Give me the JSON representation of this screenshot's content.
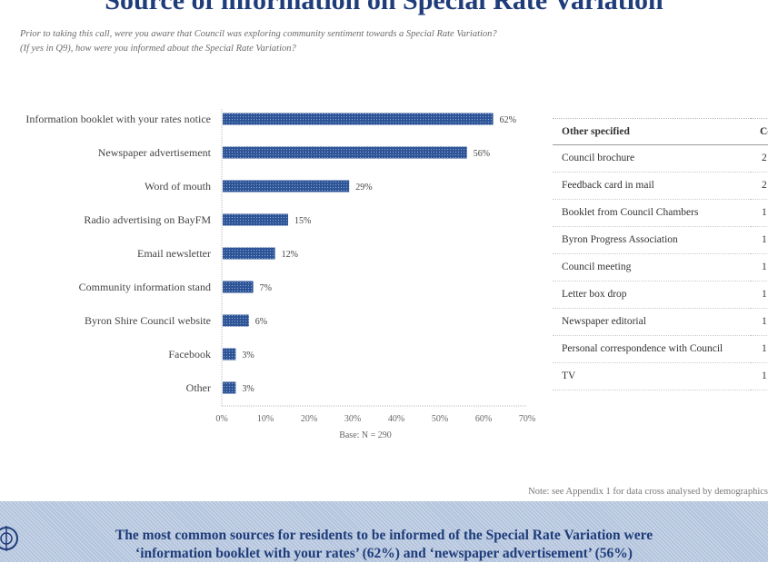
{
  "header": {
    "title": "Source of information on Special Rate Variation",
    "question_line1": "Prior to taking this call, were you aware that Council was exploring community sentiment towards a Special Rate Variation?",
    "question_line2": "(If yes in Q9), how were you informed about the Special Rate Variation?"
  },
  "chart_data": {
    "type": "bar",
    "orientation": "horizontal",
    "categories": [
      "Information booklet with your rates notice",
      "Newspaper advertisement",
      "Word of mouth",
      "Radio advertising on BayFM",
      "Email newsletter",
      "Community information stand",
      "Byron Shire Council website",
      "Facebook",
      "Other"
    ],
    "values": [
      62,
      56,
      29,
      15,
      12,
      7,
      6,
      3,
      3
    ],
    "value_labels": [
      "62%",
      "56%",
      "29%",
      "15%",
      "12%",
      "7%",
      "6%",
      "3%",
      "3%"
    ],
    "xlim": [
      0,
      70
    ],
    "x_ticks": [
      "0%",
      "10%",
      "20%",
      "30%",
      "40%",
      "50%",
      "60%",
      "70%"
    ],
    "xlabel": "Base: N = 290",
    "bar_color": "#2e5597"
  },
  "other_table": {
    "headers": [
      "Other specified",
      "Count"
    ],
    "rows": [
      {
        "label": "Council brochure",
        "count": "2"
      },
      {
        "label": "Feedback card in mail",
        "count": "2"
      },
      {
        "label": "Booklet from Council Chambers",
        "count": "1"
      },
      {
        "label": "Byron Progress Association",
        "count": "1"
      },
      {
        "label": "Council meeting",
        "count": "1"
      },
      {
        "label": "Letter box drop",
        "count": "1"
      },
      {
        "label": "Newspaper editorial",
        "count": "1"
      },
      {
        "label": "Personal correspondence with Council",
        "count": "1"
      },
      {
        "label": "TV",
        "count": "1"
      }
    ]
  },
  "note": "Note: see Appendix 1 for data cross analysed by demographics",
  "banner": {
    "line1": "The most common sources for residents to be informed of the Special Rate Variation were",
    "line2": "‘information booklet with your rates’ (62%) and ‘newspaper advertisement’ (56%)"
  }
}
